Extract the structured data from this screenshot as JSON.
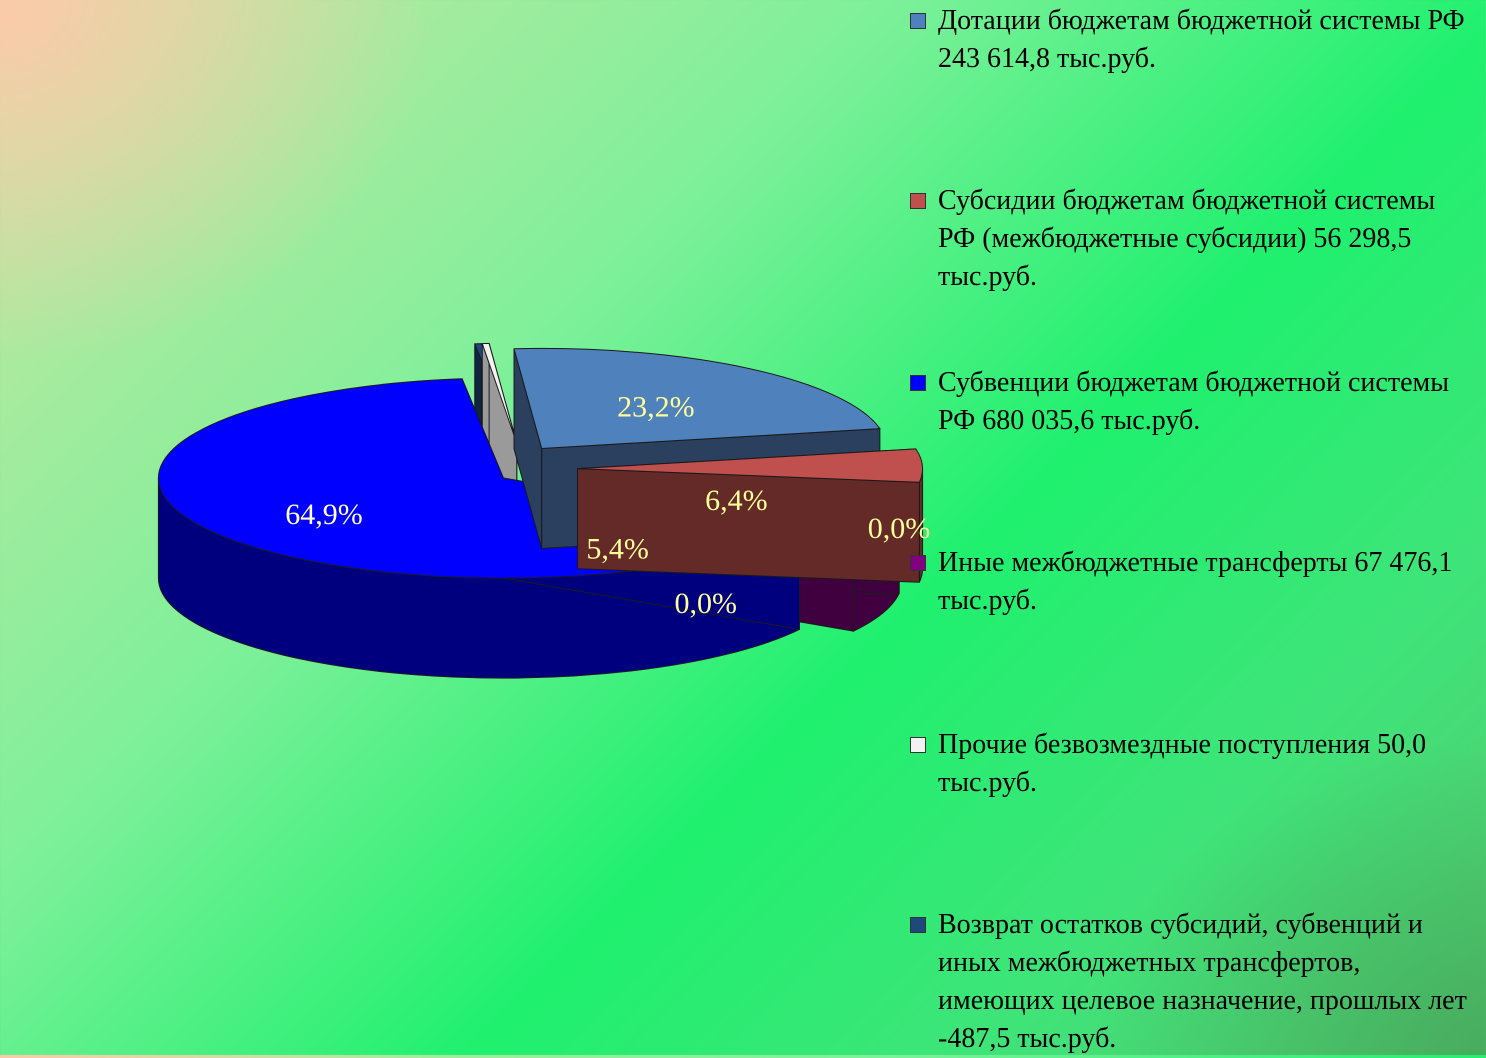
{
  "chart_data": {
    "type": "pie",
    "title": "",
    "legend_placement": "right",
    "series": [
      {
        "name": "Дотации бюджетам бюджетной системы РФ 243 614,8 тыс.руб.",
        "value": 243614.8,
        "percent_label": "23,2%",
        "color": "#4f81bd",
        "side_color": "#2b3f5e",
        "label_color": "#ffff99"
      },
      {
        "name": "Субсидии бюджетам бюджетной системы РФ (межбюджетные субсидии) 56 298,5 тыс.руб.",
        "value": 56298.5,
        "percent_label": "5,4%",
        "color": "#c0504d",
        "side_color": "#632a28",
        "label_color": "#ffff99"
      },
      {
        "name": "Субвенции бюджетам бюджетной системы РФ 680 035,6 тыс.руб.",
        "value": 680035.6,
        "percent_label": "64,9%",
        "color": "#0000ff",
        "side_color": "#00007f",
        "label_color": "#ffffcc"
      },
      {
        "name": "Иные межбюджетные трансферты 67 476,1 тыс.руб.",
        "value": 67476.1,
        "percent_label": "6,4%",
        "color": "#800080",
        "side_color": "#400040",
        "label_color": "#ffff99"
      },
      {
        "name": "Прочие безвозмездные поступления 50,0 тыс.руб.",
        "value": 50.0,
        "percent_label": "0,0%",
        "color": "#f2f2f2",
        "side_color": "#9a9a9a",
        "label_color": "#ffff99"
      },
      {
        "name": "Возврат остатков субсидий, субвенций и иных межбюджетных трансфертов, имеющих целевое назначение, прошлых лет -487,5 тыс.руб.",
        "value": -487.5,
        "percent_label": "0,0%",
        "color": "#1f497d",
        "side_color": "#102540",
        "label_color": "#ffff99"
      }
    ]
  }
}
